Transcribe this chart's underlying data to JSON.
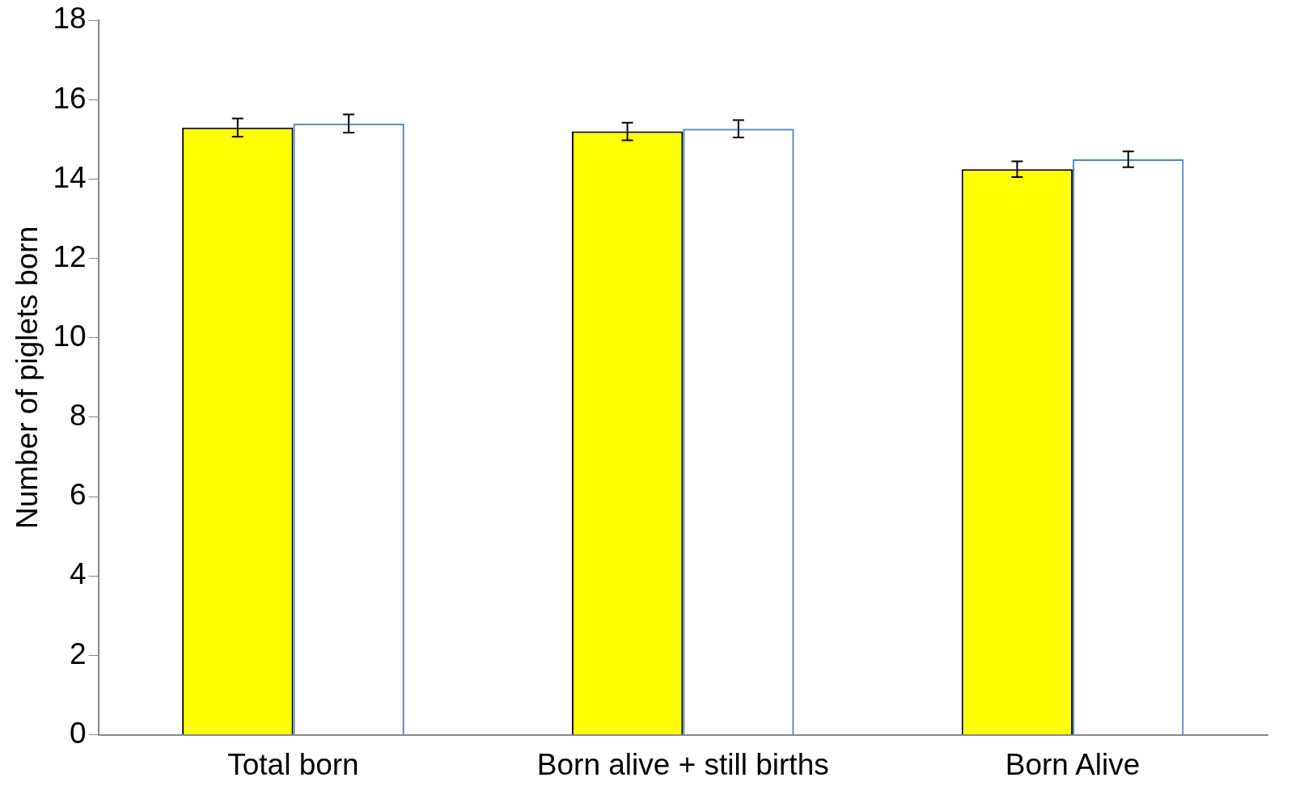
{
  "chart_data": {
    "type": "bar",
    "ylabel": "Number of piglets born",
    "categories": [
      "Total born",
      "Born alive + still births",
      "Born Alive"
    ],
    "series": [
      {
        "color": "#ffff00",
        "values": [
          15.3,
          15.2,
          14.25
        ],
        "errors": [
          0.23,
          0.22,
          0.2
        ]
      },
      {
        "color": "#4f81bd",
        "values": [
          15.4,
          15.27,
          14.5
        ],
        "errors": [
          0.23,
          0.22,
          0.2
        ]
      }
    ],
    "ylim": [
      0,
      18
    ],
    "yticks": [
      0,
      2,
      4,
      6,
      8,
      10,
      12,
      14,
      16,
      18
    ],
    "grid": false,
    "legend": false
  }
}
